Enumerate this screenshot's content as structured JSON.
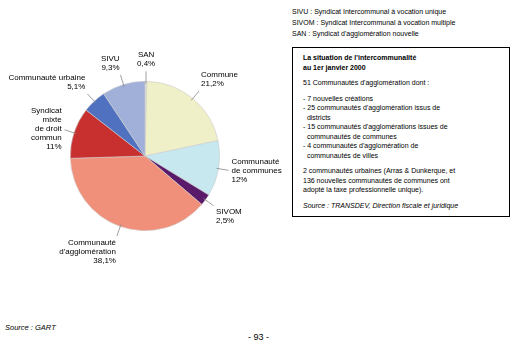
{
  "chart_data": {
    "type": "pie",
    "categories": [
      "SAN",
      "Commune",
      "Communauté\nde communes",
      "SIVOM",
      "Communauté\nd'agglomération",
      "Syndicat\nmixte\nde droit\ncommun",
      "Communauté urbaine",
      "SIVU"
    ],
    "values": [
      0.4,
      21.2,
      12.0,
      2.5,
      38.1,
      11.0,
      5.1,
      9.3
    ],
    "value_labels": [
      "0,4%",
      "21,2%",
      "12%",
      "2,5%",
      "38,1%",
      "11%",
      "5,1%",
      "9,3%"
    ],
    "colors": [
      "#e8e8d8",
      "#efefc8",
      "#c8e8f0",
      "#5a1a6a",
      "#f0907a",
      "#c83030",
      "#5070c0",
      "#a0b0d8"
    ],
    "data_labels": true,
    "annotations": [
      "SIVU : Syndicat Intercommunal à vocation unique\nSIVOM : Syndicat Intercommunal à vocation multiple\nSAN : Syndicat d'agglomération nouvelle",
      "La situation de l'intercommunalité\nau 1er janvier 2000",
      "51 Communautés d'agglomération dont :",
      "- 7 nouvelles créations\n- 25 communautés d'agglomération issus de\n  districts\n- 15 communautés d'agglomérations issues de\n  communautés de communes\n- 4 communautés d'agglomération de\n  communautés de villes",
      "2 communautés urbaines (Arras & Dunkerque, et\n136 nouvelles communautés de communes ont\nadopté la taxe professionnelle unique).",
      "Source : TRANSDEV, Direction fiscale et juridique",
      "Source : GART",
      "- 93 -"
    ]
  }
}
